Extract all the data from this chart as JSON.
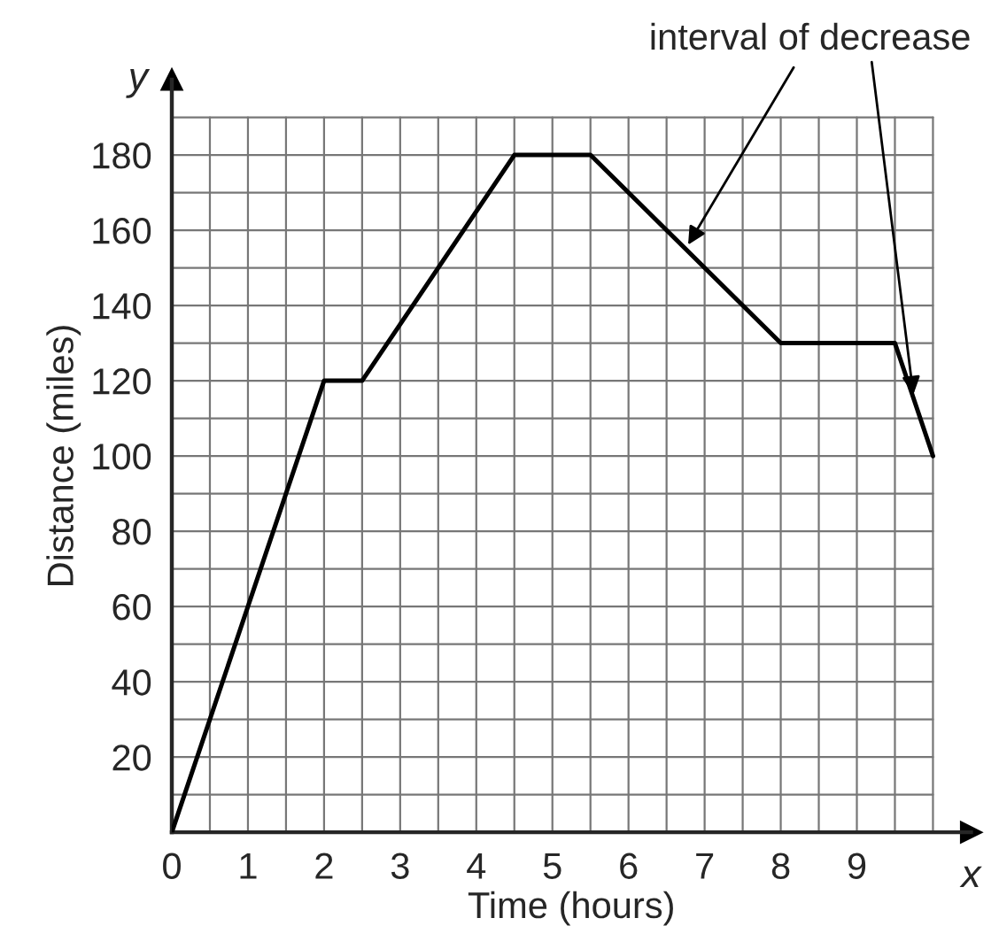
{
  "chart_data": {
    "type": "line",
    "xlabel": "Time (hours)",
    "ylabel": "Distance (miles)",
    "x": [
      0,
      2,
      2.5,
      4.5,
      5.5,
      8,
      9.5,
      10
    ],
    "series": [
      {
        "color": "#000000",
        "values": [
          0,
          120,
          120,
          180,
          180,
          130,
          130,
          100
        ]
      }
    ],
    "xlim": [
      0,
      10.5
    ],
    "ylim": [
      0,
      200
    ],
    "xticks": [
      0,
      {
        "value": 0.5,
        "label": null
      },
      1,
      {
        "value": 1.5,
        "label": null
      },
      2,
      {
        "value": 2.5,
        "label": null
      },
      3,
      {
        "value": 3.5,
        "label": null
      },
      4,
      {
        "value": 4.5,
        "label": null
      },
      5,
      {
        "value": 5.5,
        "label": null
      },
      6,
      {
        "value": 6.5,
        "label": null
      },
      7,
      {
        "value": 7.5,
        "label": null
      },
      8,
      {
        "value": 8.5,
        "label": null
      },
      9,
      {
        "value": 9.5,
        "label": null
      },
      {
        "value": 10,
        "label": null
      }
    ],
    "yticks": [
      {
        "value": 0,
        "label": null
      },
      {
        "value": 10,
        "label": null
      },
      20,
      {
        "value": 30,
        "label": null
      },
      40,
      {
        "value": 50,
        "label": null
      },
      60,
      {
        "value": 70,
        "label": null
      },
      80,
      {
        "value": 90,
        "label": null
      },
      100,
      {
        "value": 110,
        "label": null
      },
      120,
      {
        "value": 130,
        "label": null
      },
      140,
      {
        "value": 150,
        "label": null
      },
      160,
      {
        "value": 170,
        "label": null
      },
      180,
      {
        "value": 190,
        "label": null
      }
    ],
    "grid": true,
    "annotations": [
      {
        "text": "interval of decrease",
        "x": 6.75,
        "y": 155
      },
      "y",
      "x"
    ]
  }
}
